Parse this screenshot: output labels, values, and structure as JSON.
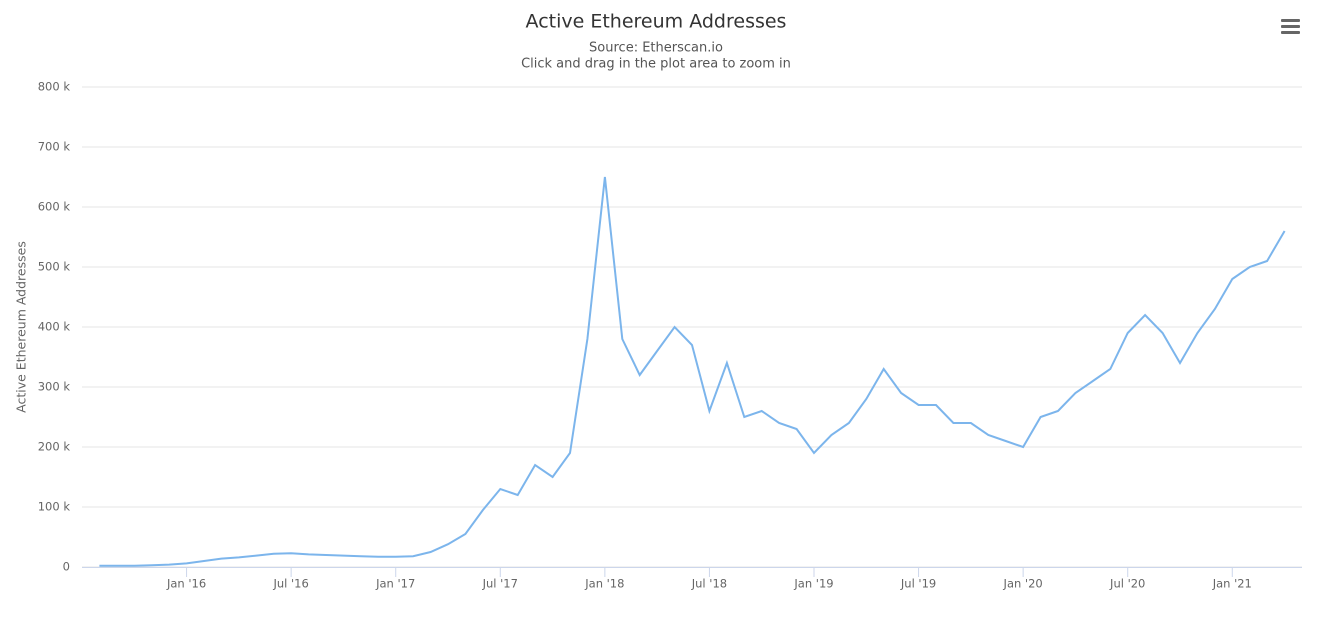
{
  "chart_data": {
    "type": "line",
    "title": "Active Ethereum Addresses",
    "subtitle": "Source: Etherscan.io",
    "subtitle2": "Click and drag in the plot area to zoom in",
    "y_label": "Active Ethereum Addresses",
    "x": [
      "2015-08",
      "2015-09",
      "2015-10",
      "2015-11",
      "2015-12",
      "2016-01",
      "2016-02",
      "2016-03",
      "2016-04",
      "2016-05",
      "2016-06",
      "2016-07",
      "2016-08",
      "2016-09",
      "2016-10",
      "2016-11",
      "2016-12",
      "2017-01",
      "2017-02",
      "2017-03",
      "2017-04",
      "2017-05",
      "2017-06",
      "2017-07",
      "2017-08",
      "2017-09",
      "2017-10",
      "2017-11",
      "2017-12",
      "2018-01",
      "2018-02",
      "2018-03",
      "2018-04",
      "2018-05",
      "2018-06",
      "2018-07",
      "2018-08",
      "2018-09",
      "2018-10",
      "2018-11",
      "2018-12",
      "2019-01",
      "2019-02",
      "2019-03",
      "2019-04",
      "2019-05",
      "2019-06",
      "2019-07",
      "2019-08",
      "2019-09",
      "2019-10",
      "2019-11",
      "2019-12",
      "2020-01",
      "2020-02",
      "2020-03",
      "2020-04",
      "2020-05",
      "2020-06",
      "2020-07",
      "2020-08",
      "2020-09",
      "2020-10",
      "2020-11",
      "2020-12",
      "2021-01",
      "2021-02",
      "2021-03",
      "2021-04"
    ],
    "series": [
      {
        "name": "Active Ethereum Addresses",
        "color": "#7cb5ec",
        "values": [
          2000,
          2000,
          2000,
          3000,
          4000,
          6000,
          10000,
          14000,
          16000,
          19000,
          22000,
          23000,
          21000,
          20000,
          19000,
          18000,
          17000,
          17000,
          18000,
          25000,
          38000,
          55000,
          95000,
          130000,
          120000,
          170000,
          150000,
          190000,
          380000,
          650000,
          380000,
          320000,
          360000,
          400000,
          370000,
          260000,
          340000,
          250000,
          260000,
          240000,
          230000,
          190000,
          220000,
          240000,
          280000,
          330000,
          290000,
          270000,
          270000,
          240000,
          240000,
          220000,
          210000,
          200000,
          250000,
          260000,
          290000,
          310000,
          330000,
          390000,
          420000,
          390000,
          340000,
          390000,
          430000,
          480000,
          500000,
          510000,
          560000
        ]
      }
    ],
    "xlim": [
      "2015-07",
      "2021-05"
    ],
    "xticks": [
      {
        "value": "2016-01",
        "label": "Jan '16"
      },
      {
        "value": "2016-07",
        "label": "Jul '16"
      },
      {
        "value": "2017-01",
        "label": "Jan '17"
      },
      {
        "value": "2017-07",
        "label": "Jul '17"
      },
      {
        "value": "2018-01",
        "label": "Jan '18"
      },
      {
        "value": "2018-07",
        "label": "Jul '18"
      },
      {
        "value": "2019-01",
        "label": "Jan '19"
      },
      {
        "value": "2019-07",
        "label": "Jul '19"
      },
      {
        "value": "2020-01",
        "label": "Jan '20"
      },
      {
        "value": "2020-07",
        "label": "Jul '20"
      },
      {
        "value": "2021-01",
        "label": "Jan '21"
      }
    ],
    "ylim": [
      0,
      800000
    ],
    "yticks": [
      0,
      {
        "value": 100000,
        "label": "100 k"
      },
      {
        "value": 200000,
        "label": "200 k"
      },
      {
        "value": 300000,
        "label": "300 k"
      },
      {
        "value": 400000,
        "label": "400 k"
      },
      {
        "value": 500000,
        "label": "500 k"
      },
      {
        "value": 600000,
        "label": "600 k"
      },
      {
        "value": 700000,
        "label": "700 k"
      },
      {
        "value": 800000,
        "label": "800 k"
      }
    ],
    "grid": true
  }
}
